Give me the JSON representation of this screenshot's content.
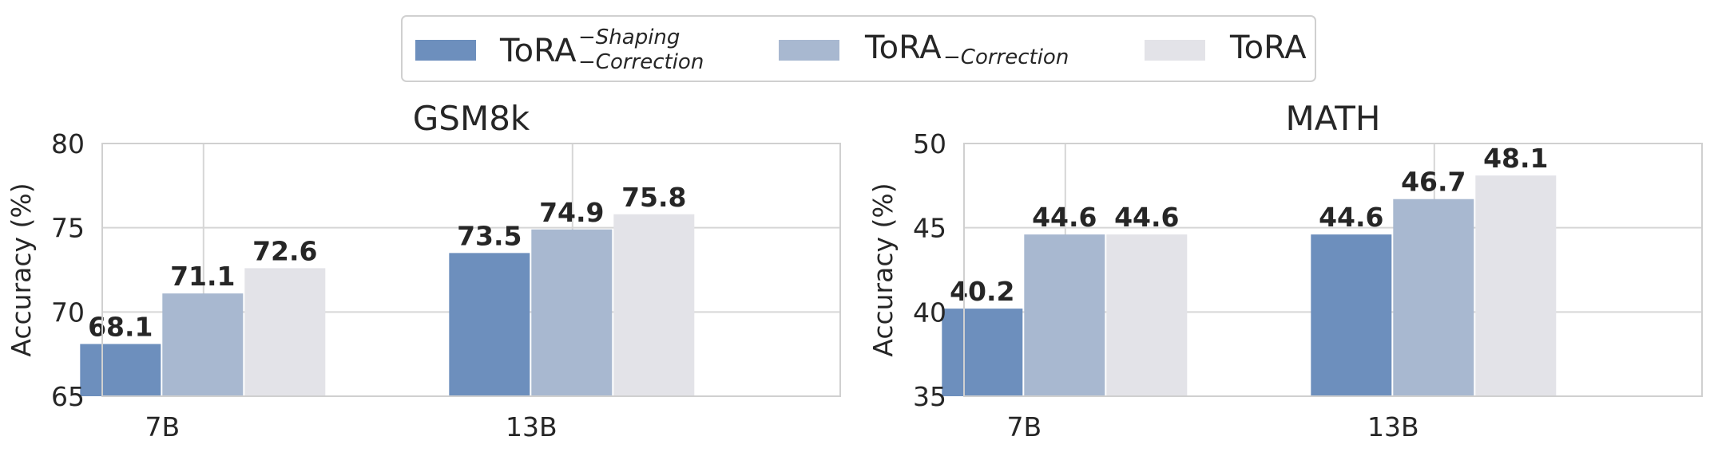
{
  "legend": {
    "entries": [
      {
        "base": "ToRA",
        "sup": "−Shaping",
        "sub": "−Correction",
        "color": "#6d8fbd"
      },
      {
        "base": "ToRA",
        "sup": "",
        "sub": "−Correction",
        "color": "#a8b8d0"
      },
      {
        "base": "ToRA",
        "sup": "",
        "sub": "",
        "color": "#e3e3e8"
      }
    ]
  },
  "chart_data": [
    {
      "type": "bar",
      "title": "GSM8k",
      "ylabel": "Accuracy (%)",
      "categories": [
        "7B",
        "13B"
      ],
      "ylim": [
        65,
        80
      ],
      "yticks": [
        65,
        70,
        75,
        80
      ],
      "series": [
        {
          "name": "ToRA−Shaping −Correction",
          "color": "#6d8fbd",
          "values": [
            68.1,
            73.5
          ]
        },
        {
          "name": "ToRA −Correction",
          "color": "#a8b8d0",
          "values": [
            71.1,
            74.9
          ]
        },
        {
          "name": "ToRA",
          "color": "#e3e3e8",
          "values": [
            72.6,
            75.8
          ]
        }
      ],
      "grid": true
    },
    {
      "type": "bar",
      "title": "MATH",
      "ylabel": "Accuracy (%)",
      "categories": [
        "7B",
        "13B"
      ],
      "ylim": [
        35,
        50
      ],
      "yticks": [
        35,
        40,
        45,
        50
      ],
      "series": [
        {
          "name": "ToRA−Shaping −Correction",
          "color": "#6d8fbd",
          "values": [
            40.2,
            44.6
          ]
        },
        {
          "name": "ToRA −Correction",
          "color": "#a8b8d0",
          "values": [
            44.6,
            46.7
          ]
        },
        {
          "name": "ToRA",
          "color": "#e3e3e8",
          "values": [
            44.6,
            48.1
          ]
        }
      ],
      "grid": true
    }
  ]
}
